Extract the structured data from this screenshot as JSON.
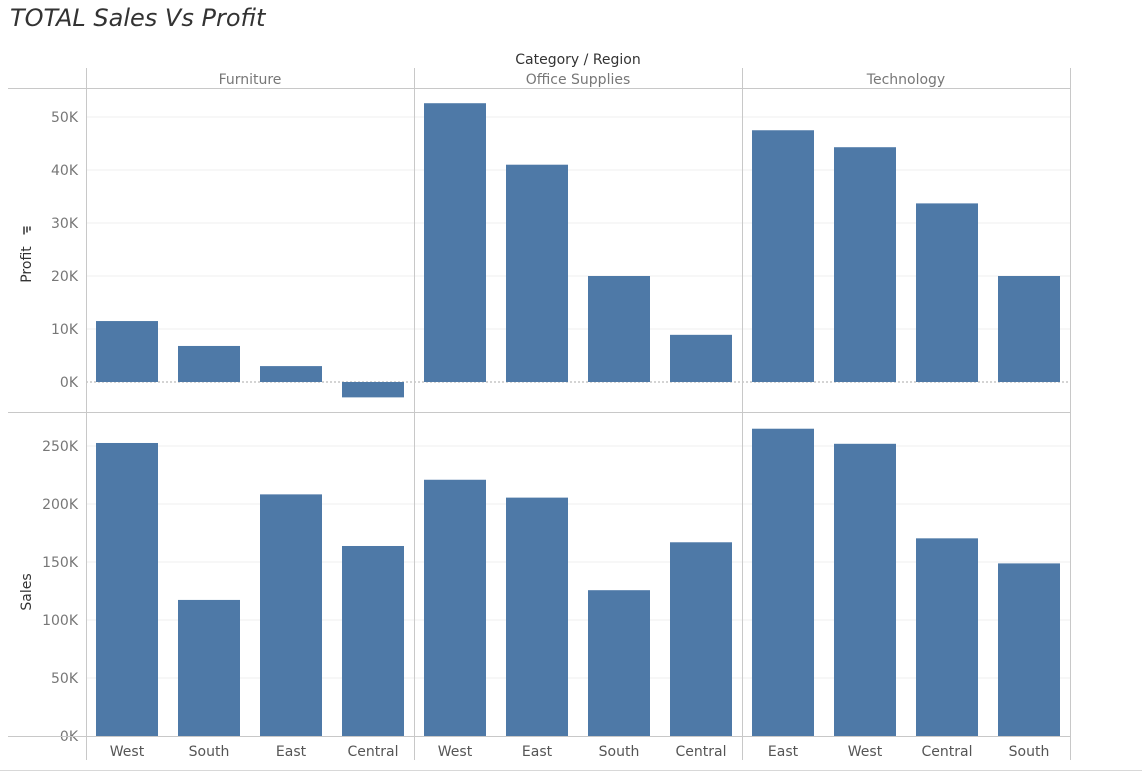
{
  "title": "TOTAL Sales Vs Profit",
  "colors": {
    "bar": "#4e79a7",
    "grid": "#efefef",
    "divider": "#c8c8c8",
    "tick_text": "#777777",
    "label_text": "#555555",
    "header_text": "#333333",
    "zero_line": "#a8a8a8"
  },
  "chart_data": {
    "type": "bar",
    "column_header": "Category / Region",
    "filter_icon": "sort-descending-icon",
    "panels": [
      {
        "category": "Furniture",
        "regions": [
          "West",
          "South",
          "East",
          "Central"
        ],
        "profit": [
          11500,
          6800,
          3000,
          -2900
        ],
        "sales": [
          252600,
          117300,
          208300,
          163800
        ]
      },
      {
        "category": "Office Supplies",
        "regions": [
          "West",
          "East",
          "South",
          "Central"
        ],
        "profit": [
          52600,
          41000,
          20000,
          8900
        ],
        "sales": [
          220900,
          205500,
          125700,
          167000
        ]
      },
      {
        "category": "Technology",
        "regions": [
          "East",
          "West",
          "Central",
          "South"
        ],
        "profit": [
          47500,
          44300,
          33700,
          20000
        ],
        "sales": [
          264900,
          251900,
          170400,
          148800
        ]
      }
    ],
    "rows": [
      {
        "measure": "Profit",
        "ylabel": "Profit",
        "ylim": [
          -5000,
          55000
        ],
        "ticks": [
          0,
          10000,
          20000,
          30000,
          40000,
          50000
        ],
        "tick_labels": [
          "0K",
          "10K",
          "20K",
          "30K",
          "40K",
          "50K"
        ]
      },
      {
        "measure": "Sales",
        "ylabel": "Sales",
        "ylim": [
          0,
          270000
        ],
        "ticks": [
          0,
          50000,
          100000,
          150000,
          200000,
          250000
        ],
        "tick_labels": [
          "0K",
          "50K",
          "100K",
          "150K",
          "200K",
          "250K"
        ]
      }
    ],
    "grid": true
  }
}
